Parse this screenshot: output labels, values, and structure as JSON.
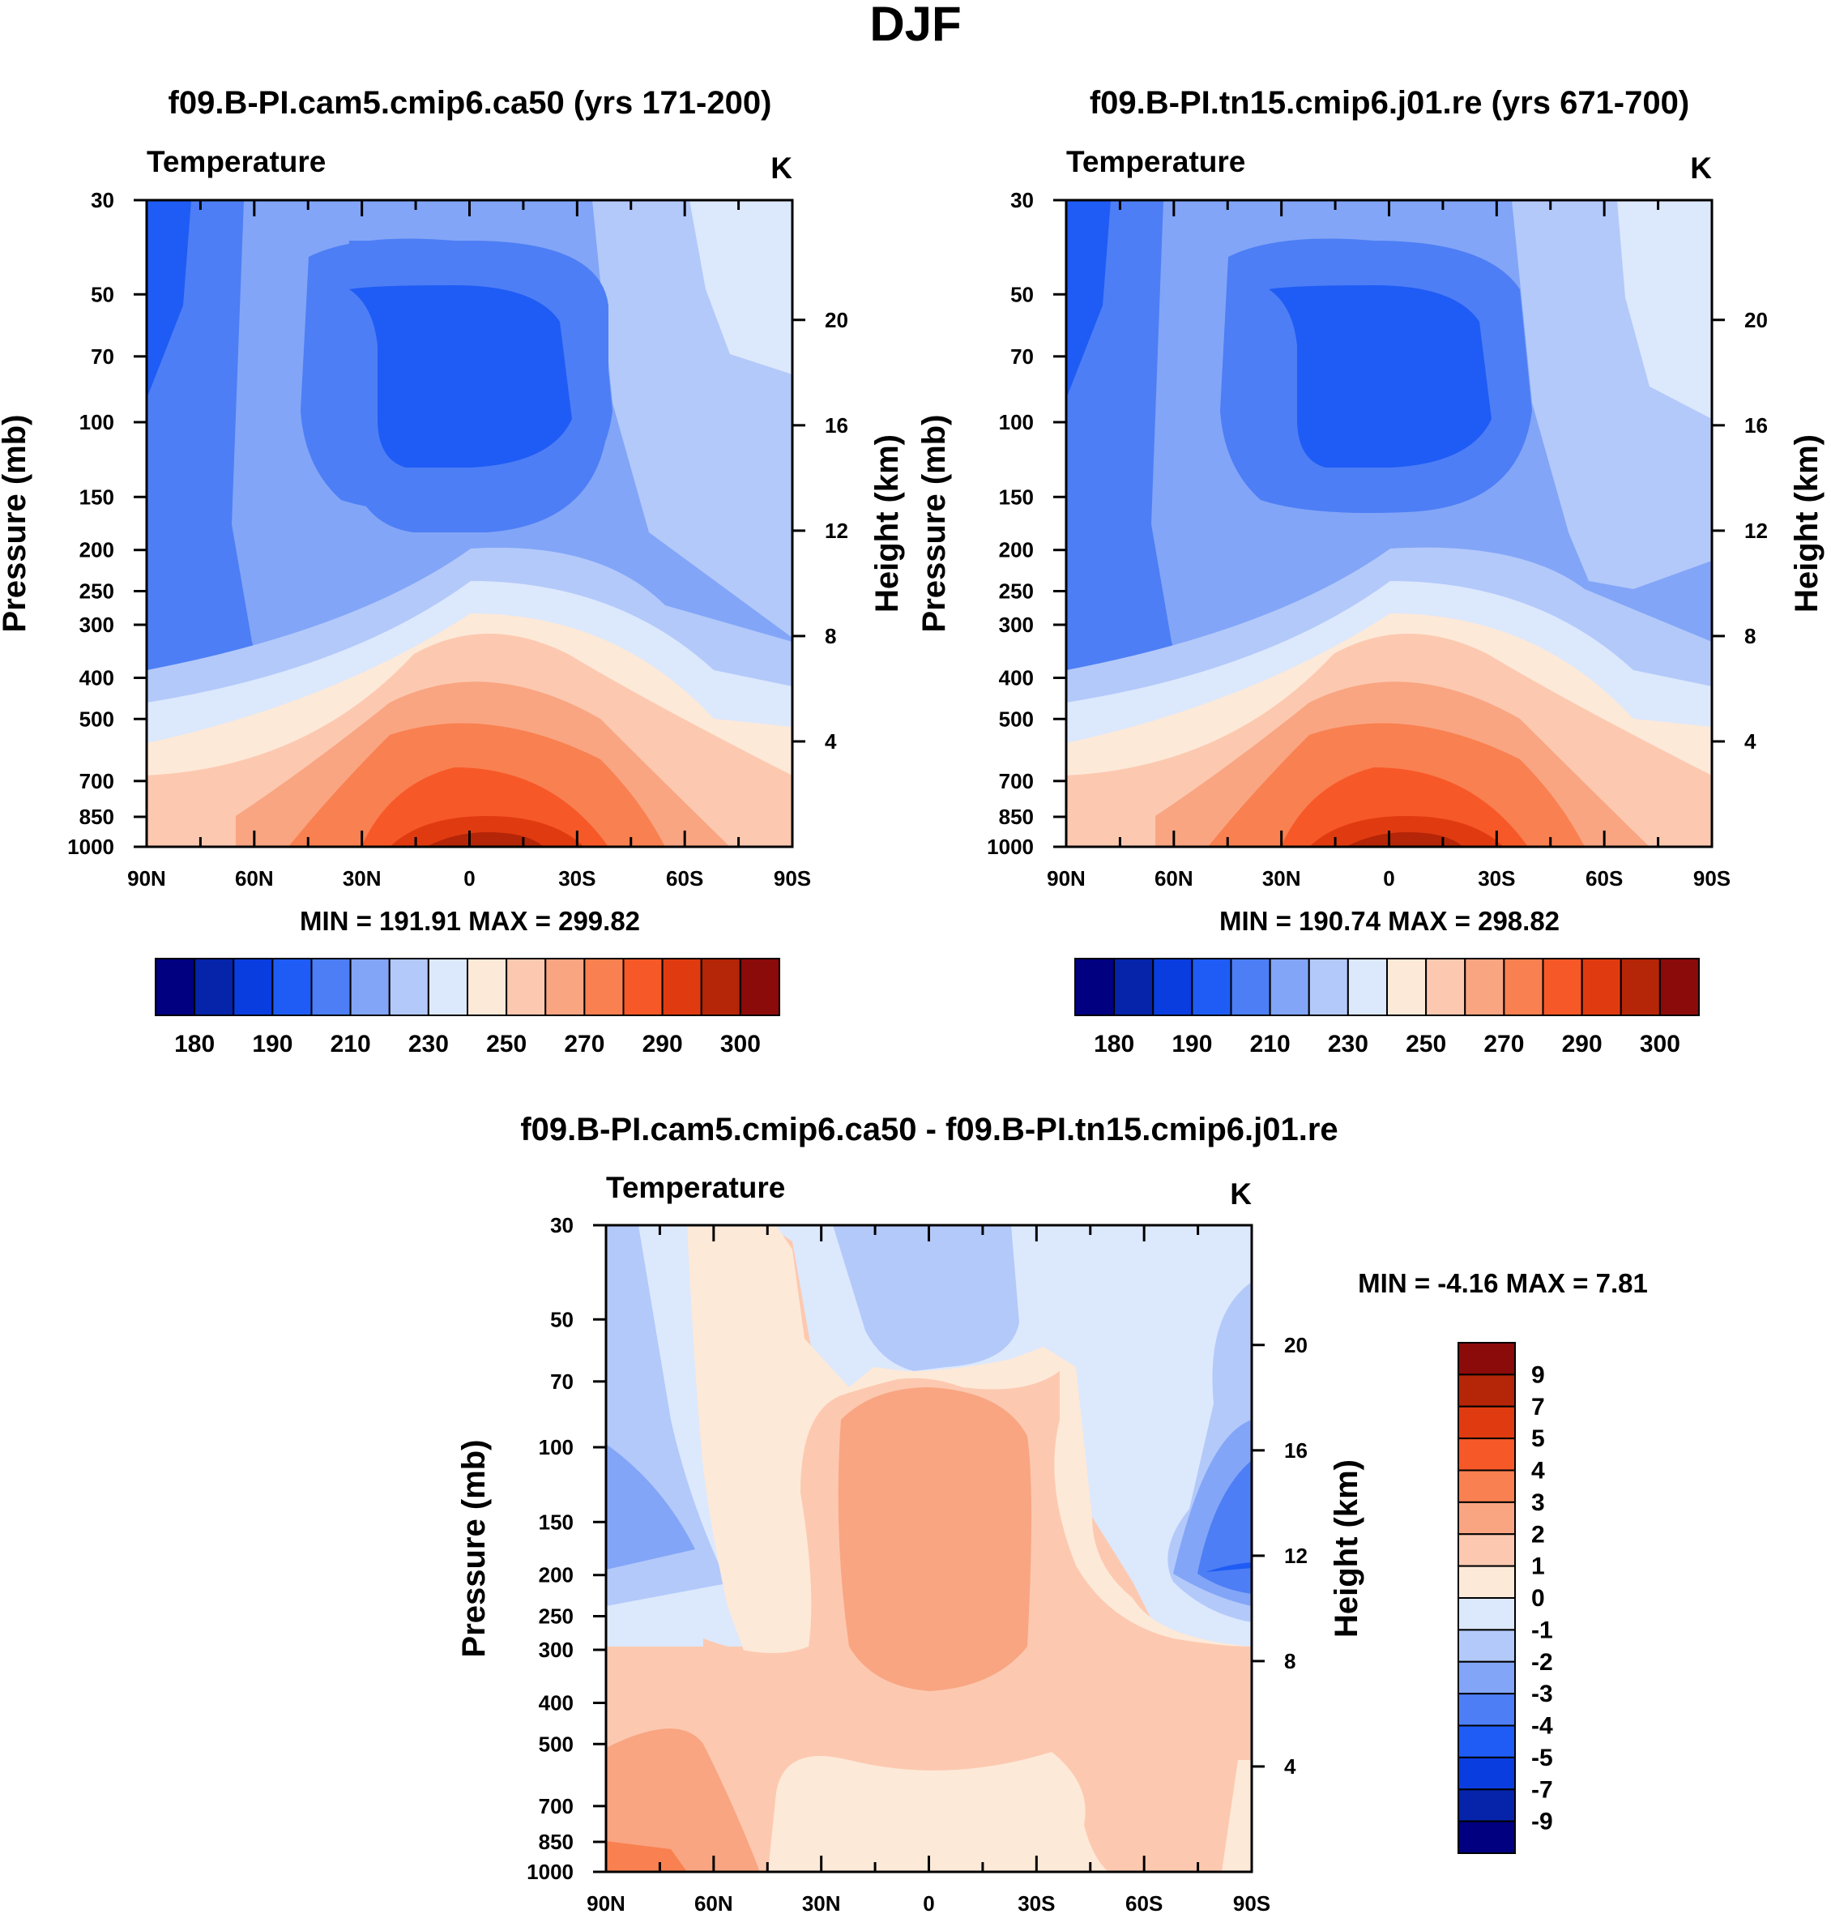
{
  "main_title": "DJF",
  "chart_data": [
    {
      "type": "contour",
      "id": "top-left",
      "title": "f09.B-PI.cam5.cmip6.ca50 (yrs 171-200)",
      "field_label": "Temperature",
      "units_label": "K",
      "ylabel": "Pressure (mb)",
      "ylabel_right": "Height (km)",
      "x_tick_labels": [
        "90N",
        "60N",
        "30N",
        "0",
        "30S",
        "60S",
        "90S"
      ],
      "x_values": [
        90,
        60,
        30,
        0,
        -30,
        -60,
        -90
      ],
      "pressure_ticks": [
        "30",
        "50",
        "70",
        "100",
        "150",
        "200",
        "250",
        "300",
        "400",
        "500",
        "700",
        "850",
        "1000"
      ],
      "height_ticks": [
        "20",
        "16",
        "12",
        "8",
        "4"
      ],
      "stats": "MIN = 191.91  MAX = 299.82",
      "colorbar_labels": [
        "180",
        "190",
        "210",
        "230",
        "250",
        "270",
        "290",
        "300"
      ],
      "colorbar_levels": [
        180,
        185,
        190,
        200,
        210,
        220,
        230,
        240,
        250,
        260,
        270,
        280,
        290,
        295,
        300
      ],
      "colors": [
        "#000080",
        "#0524aa",
        "#0a3de0",
        "#1f5cf5",
        "#4d7ef5",
        "#82a5f7",
        "#b3c9fa",
        "#dce8fc",
        "#fde9d8",
        "#fcc9b0",
        "#f9a582",
        "#f98050",
        "#f75828",
        "#e03b10",
        "#b52508",
        "#8b0a0a"
      ],
      "min": 191.91,
      "max": 299.82
    },
    {
      "type": "contour",
      "id": "top-right",
      "title": "f09.B-PI.tn15.cmip6.j01.re (yrs 671-700)",
      "field_label": "Temperature",
      "units_label": "K",
      "ylabel": "Pressure (mb)",
      "ylabel_right": "Height (km)",
      "x_tick_labels": [
        "90N",
        "60N",
        "30N",
        "0",
        "30S",
        "60S",
        "90S"
      ],
      "x_values": [
        90,
        60,
        30,
        0,
        -30,
        -60,
        -90
      ],
      "pressure_ticks": [
        "30",
        "50",
        "70",
        "100",
        "150",
        "200",
        "250",
        "300",
        "400",
        "500",
        "700",
        "850",
        "1000"
      ],
      "height_ticks": [
        "20",
        "16",
        "12",
        "8",
        "4"
      ],
      "stats": "MIN = 190.74  MAX = 298.82",
      "colorbar_labels": [
        "180",
        "190",
        "210",
        "230",
        "250",
        "270",
        "290",
        "300"
      ],
      "colorbar_levels": [
        180,
        185,
        190,
        200,
        210,
        220,
        230,
        240,
        250,
        260,
        270,
        280,
        290,
        295,
        300
      ],
      "colors": [
        "#000080",
        "#0524aa",
        "#0a3de0",
        "#1f5cf5",
        "#4d7ef5",
        "#82a5f7",
        "#b3c9fa",
        "#dce8fc",
        "#fde9d8",
        "#fcc9b0",
        "#f9a582",
        "#f98050",
        "#f75828",
        "#e03b10",
        "#b52508",
        "#8b0a0a"
      ],
      "min": 190.74,
      "max": 298.82
    },
    {
      "type": "contour",
      "id": "bottom-diff",
      "title": "f09.B-PI.cam5.cmip6.ca50 - f09.B-PI.tn15.cmip6.j01.re",
      "field_label": "Temperature",
      "units_label": "K",
      "ylabel": "Pressure (mb)",
      "ylabel_right": "Height (km)",
      "x_tick_labels": [
        "90N",
        "60N",
        "30N",
        "0",
        "30S",
        "60S",
        "90S"
      ],
      "x_values": [
        90,
        60,
        30,
        0,
        -30,
        -60,
        -90
      ],
      "pressure_ticks": [
        "30",
        "50",
        "70",
        "100",
        "150",
        "200",
        "250",
        "300",
        "400",
        "500",
        "700",
        "850",
        "1000"
      ],
      "height_ticks": [
        "20",
        "16",
        "12",
        "8",
        "4"
      ],
      "stats": "MIN =  -4.16  MAX =   7.81",
      "colorbar_labels": [
        "9",
        "7",
        "5",
        "4",
        "3",
        "2",
        "1",
        "0",
        "-1",
        "-2",
        "-3",
        "-4",
        "-5",
        "-7",
        "-9"
      ],
      "colorbar_levels": [
        -9,
        -7,
        -5,
        -4,
        -3,
        -2,
        -1,
        0,
        1,
        2,
        3,
        4,
        5,
        7,
        9
      ],
      "colors": [
        "#000080",
        "#0524aa",
        "#0a3de0",
        "#1f5cf5",
        "#4d7ef5",
        "#82a5f7",
        "#b3c9fa",
        "#dce8fc",
        "#fde9d8",
        "#fcc9b0",
        "#f9a582",
        "#f98050",
        "#f75828",
        "#e03b10",
        "#b52508",
        "#8b0a0a"
      ],
      "min": -4.16,
      "max": 7.81
    }
  ]
}
